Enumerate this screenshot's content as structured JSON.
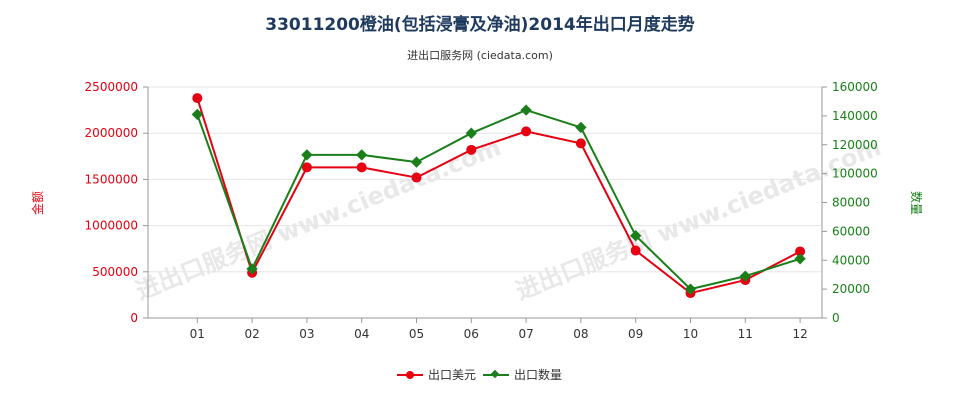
{
  "colors": {
    "left_series": "#e60012",
    "right_series": "#1a7f1a",
    "axis": "#999999",
    "grid": "#e5e5e5"
  },
  "chart_data": {
    "type": "line",
    "title": "33011200橙油(包括浸膏及净油)2014年出口月度走势",
    "subtitle": "进出口服务网 (ciedata.com)",
    "watermark": "进出口服务网 www.ciedata.com",
    "x": [
      "01",
      "02",
      "03",
      "04",
      "05",
      "06",
      "07",
      "08",
      "09",
      "10",
      "11",
      "12"
    ],
    "y_left_label": "金额",
    "y_right_label": "数量",
    "y_left_ticks": [
      "0",
      "500000",
      "1000000",
      "1500000",
      "2000000",
      "2500000"
    ],
    "y_right_ticks": [
      "0",
      "20000",
      "40000",
      "60000",
      "80000",
      "100000",
      "120000",
      "140000",
      "160000"
    ],
    "ylim_left": [
      0,
      2500000
    ],
    "ylim_right": [
      0,
      160000
    ],
    "grid": true,
    "legend_position": "bottom",
    "series": [
      {
        "name": "出口美元",
        "axis": "left",
        "values": [
          2380000,
          490000,
          1630000,
          1630000,
          1520000,
          1820000,
          2020000,
          1890000,
          730000,
          270000,
          410000,
          720000
        ]
      },
      {
        "name": "出口数量",
        "axis": "right",
        "values": [
          141000,
          34000,
          113000,
          113000,
          108000,
          128000,
          144000,
          132000,
          57000,
          20000,
          29000,
          41000
        ]
      }
    ]
  }
}
